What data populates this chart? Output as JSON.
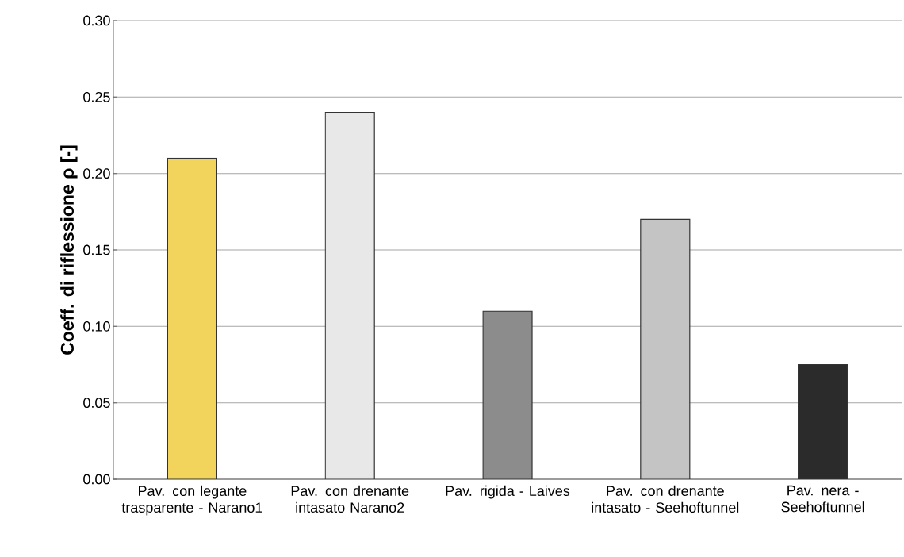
{
  "chart_data": {
    "type": "bar",
    "ylabel": "Coeff. di riflessione ρ [-]",
    "categories": [
      "Pav. con legante trasparente - Narano1",
      "Pav. con drenante intasato Narano2",
      "Pav. rigida - Laives",
      "Pav. con drenante intasato - Seehoftunnel",
      "Pav. nera - Seehoftunnel"
    ],
    "values": [
      0.21,
      0.24,
      0.11,
      0.17,
      0.075
    ],
    "colors": [
      "#f2d45c",
      "#e8e8e8",
      "#8c8c8c",
      "#c4c4c4",
      "#2b2b2b"
    ],
    "ylim": [
      0,
      0.3
    ],
    "yticks": [
      {
        "value": 0,
        "label": "0.00"
      },
      {
        "value": 0.05,
        "label": "0.05"
      },
      {
        "value": 0.1,
        "label": "0.10"
      },
      {
        "value": 0.15,
        "label": "0.15"
      },
      {
        "value": 0.2,
        "label": "0.20"
      },
      {
        "value": 0.25,
        "label": "0.25"
      },
      {
        "value": 0.3,
        "label": "0.30"
      }
    ],
    "grid": "y"
  }
}
